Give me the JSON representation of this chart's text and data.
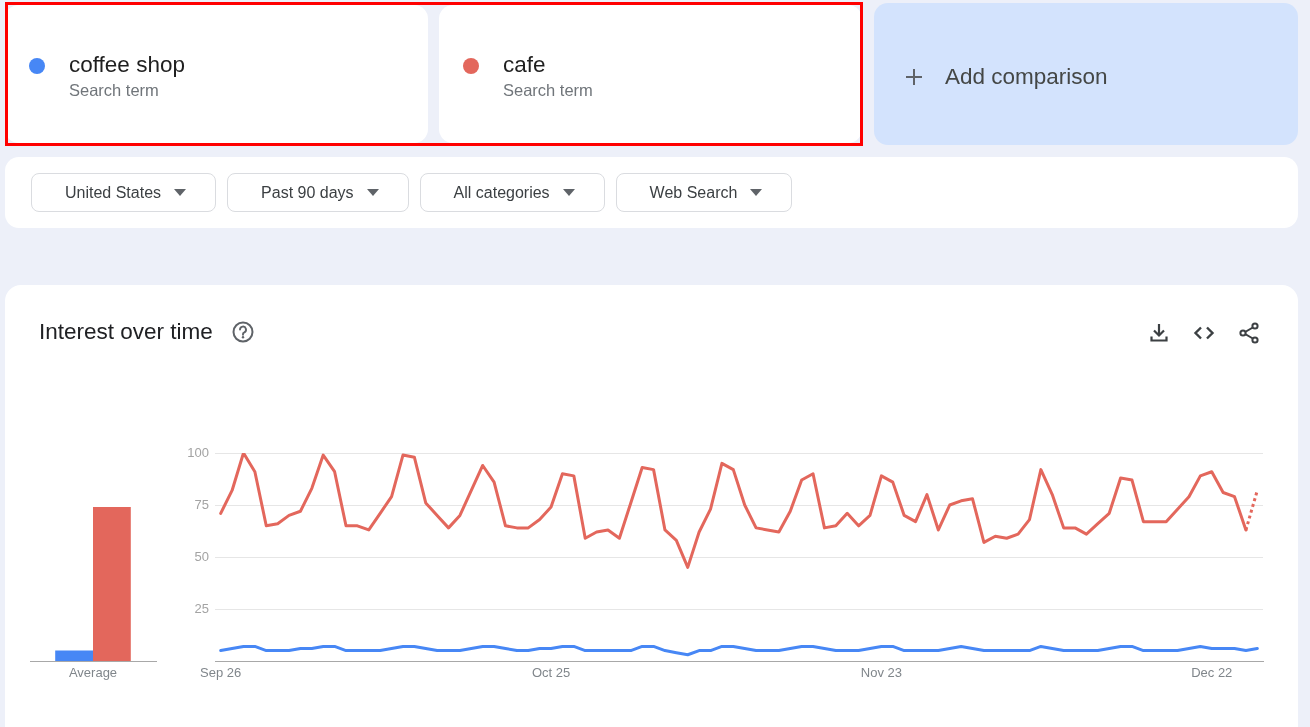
{
  "chart_data": [
    {
      "type": "other",
      "annotations": [
        "Add comparison",
        "United States",
        "Past 90 days",
        "All categories",
        "Web Search"
      ]
    },
    {
      "type": "bar",
      "title": "Interest over time",
      "categories": [
        "Average"
      ],
      "series": [
        {
          "color": "#4787f5",
          "values": [
            5
          ]
        },
        {
          "color": "#e3675c",
          "values": [
            74
          ]
        }
      ],
      "ylim": [
        0,
        100
      ],
      "tick_labels": "x"
    },
    {
      "type": "line",
      "annotations": [
        "Search term",
        "Search term"
      ],
      "x": [
        "--09-26",
        "--09-27",
        "--09-28",
        "--09-29",
        "--09-30",
        "--10-01",
        "--10-02",
        "--10-03",
        "--10-04",
        "--10-05",
        "--10-06",
        "--10-07",
        "--10-08",
        "--10-09",
        "--10-10",
        "--10-11",
        "--10-12",
        "--10-13",
        "--10-14",
        "--10-15",
        "--10-16",
        "--10-17",
        "--10-18",
        "--10-19",
        "--10-20",
        "--10-21",
        "--10-22",
        "--10-23",
        "--10-24",
        "--10-25",
        "--10-26",
        "--10-27",
        "--10-28",
        "--10-29",
        "--10-30",
        "--10-31",
        "--11-01",
        "--11-02",
        "--11-03",
        "--11-04",
        "--11-05",
        "--11-06",
        "--11-07",
        "--11-08",
        "--11-09",
        "--11-10",
        "--11-11",
        "--11-12",
        "--11-13",
        "--11-14",
        "--11-15",
        "--11-16",
        "--11-17",
        "--11-18",
        "--11-19",
        "--11-20",
        "--11-21",
        "--11-22",
        "--11-23",
        "--11-24",
        "--11-25",
        "--11-26",
        "--11-27",
        "--11-28",
        "--11-29",
        "--11-30",
        "--12-01",
        "--12-02",
        "--12-03",
        "--12-04",
        "--12-05",
        "--12-06",
        "--12-07",
        "--12-08",
        "--12-09",
        "--12-10",
        "--12-11",
        "--12-12",
        "--12-13",
        "--12-14",
        "--12-15",
        "--12-16",
        "--12-17",
        "--12-18",
        "--12-19",
        "--12-20",
        "--12-21",
        "--12-22",
        "--12-23",
        "--12-24",
        "--12-25",
        "--12-26"
      ],
      "series": [
        {
          "name": "coffee shop",
          "color": "#4787f5",
          "values": [
            5,
            6,
            7,
            7,
            5,
            5,
            5,
            6,
            6,
            7,
            7,
            5,
            5,
            5,
            5,
            6,
            7,
            7,
            6,
            5,
            5,
            5,
            6,
            7,
            7,
            6,
            5,
            5,
            6,
            6,
            7,
            7,
            5,
            5,
            5,
            5,
            5,
            7,
            7,
            5,
            4,
            3,
            5,
            5,
            7,
            7,
            6,
            5,
            5,
            5,
            6,
            7,
            7,
            6,
            5,
            5,
            5,
            6,
            7,
            7,
            5,
            5,
            5,
            5,
            6,
            7,
            6,
            5,
            5,
            5,
            5,
            5,
            7,
            6,
            5,
            5,
            5,
            5,
            6,
            7,
            7,
            5,
            5,
            5,
            5,
            6,
            7,
            6,
            6,
            6,
            5,
            6
          ]
        },
        {
          "name": "cafe",
          "color": "#e3675c",
          "values": [
            71,
            82,
            100,
            91,
            65,
            66,
            70,
            72,
            83,
            99,
            91,
            65,
            65,
            63,
            71,
            79,
            99,
            98,
            76,
            70,
            64,
            70,
            82,
            94,
            86,
            65,
            64,
            64,
            68,
            74,
            90,
            89,
            59,
            62,
            63,
            59,
            76,
            93,
            92,
            63,
            58,
            45,
            62,
            73,
            95,
            92,
            75,
            64,
            63,
            62,
            72,
            87,
            90,
            64,
            65,
            71,
            65,
            70,
            89,
            86,
            70,
            67,
            80,
            63,
            75,
            77,
            78,
            57,
            60,
            59,
            61,
            68,
            92,
            80,
            64,
            64,
            61,
            66,
            71,
            88,
            87,
            67,
            67,
            67,
            73,
            79,
            89,
            91,
            81,
            79,
            63,
            null
          ]
        },
        {
          "color": "#e3675c",
          "line_style": "dotted",
          "x": [
            "--12-25",
            "--12-26"
          ],
          "values": [
            63,
            82
          ]
        }
      ],
      "xlim": [
        "--09-25T12:00",
        "--12-26T12:00"
      ],
      "xticks": [
        {
          "value": "--09-26",
          "label": "Sep 26"
        },
        {
          "value": "--10-25",
          "label": "Oct 25"
        },
        {
          "value": "--11-23",
          "label": "Nov 23"
        },
        {
          "value": "--12-22",
          "label": "Dec 22"
        }
      ],
      "ylim": [
        0,
        100
      ],
      "yticks": [
        25,
        50,
        75,
        100
      ],
      "grid": "y",
      "legend": "top"
    }
  ]
}
